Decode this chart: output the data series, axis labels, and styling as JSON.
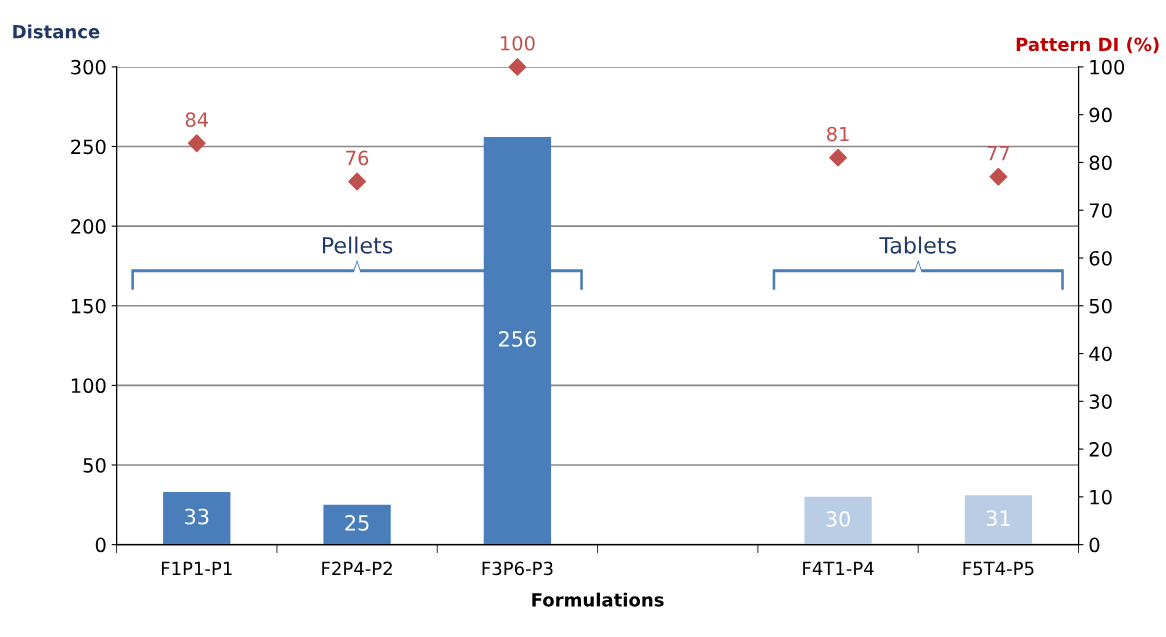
{
  "chart_data": {
    "type": "bar",
    "xlabel": "Formulations",
    "ylabel": "Distance",
    "y2label": "Pattern DI (%)",
    "categories": [
      "F1P1-P1",
      "F2P4-P2",
      "F3P6-P3",
      null,
      "F4T1-P4",
      "F5T4-P5"
    ],
    "series": [
      {
        "type": "bar",
        "colors": [
          "#4a7ebb",
          "#4a7ebb",
          "#4a7ebb",
          null,
          "#b9cde5",
          "#b9cde5"
        ],
        "values": [
          33,
          25,
          256,
          null,
          30,
          31
        ]
      },
      {
        "type": "scatter",
        "axis": "y2",
        "color": "#c0504d",
        "marker": "diamond",
        "values": [
          84,
          76,
          100,
          null,
          81,
          77
        ]
      }
    ],
    "ylim": [
      0,
      300
    ],
    "yticks": [
      0,
      50,
      100,
      150,
      200,
      250,
      300
    ],
    "y2lim": [
      0,
      100
    ],
    "y2ticks": [
      0,
      10,
      20,
      30,
      40,
      50,
      60,
      70,
      80,
      90,
      100
    ],
    "grid": "y",
    "data_labels": true,
    "annotations": [
      "Pellets",
      "Tablets"
    ]
  }
}
